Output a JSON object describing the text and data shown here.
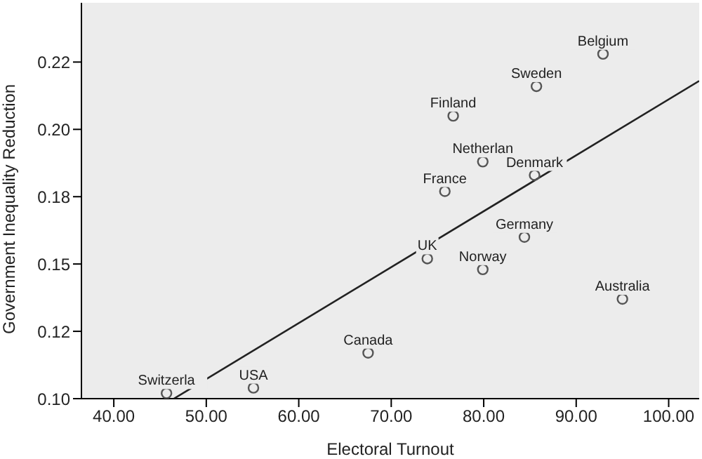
{
  "chart_data": {
    "type": "scatter",
    "xlabel": "Electoral Turnout",
    "ylabel": "Government Inequality Reduction",
    "x": [
      45.7,
      55.1,
      67.5,
      73.9,
      79.9,
      84.4,
      95.0,
      75.8,
      79.9,
      85.5,
      76.7,
      85.7,
      92.9
    ],
    "series": [
      {
        "marker": "circle",
        "color": "#555555",
        "values": [
          0.102,
          0.104,
          0.117,
          0.152,
          0.148,
          0.16,
          0.137,
          0.177,
          0.188,
          0.183,
          0.205,
          0.216,
          0.228
        ]
      },
      {
        "type": "line",
        "color": "#222222",
        "x": [
          46.5,
          103.3
        ],
        "values": [
          0.1,
          0.218
        ]
      }
    ],
    "grid": false,
    "legend": false,
    "xlim": [
      36.5,
      103.3
    ],
    "ylim": [
      0.1,
      0.247
    ],
    "xticks": [
      {
        "value": 40,
        "label": "40.00"
      },
      {
        "value": 50,
        "label": "50.00"
      },
      {
        "value": 60,
        "label": "60.00"
      },
      {
        "value": 70,
        "label": "70.00"
      },
      {
        "value": 80,
        "label": "80.00"
      },
      {
        "value": 90,
        "label": "90.00"
      },
      {
        "value": 100,
        "label": "100.00"
      }
    ],
    "yticks": [
      {
        "value": 0.1,
        "label": "0.10"
      },
      {
        "value": 0.125,
        "label": "0.12"
      },
      {
        "value": 0.15,
        "label": "0.15"
      },
      {
        "value": 0.175,
        "label": "0.18"
      },
      {
        "value": 0.2,
        "label": "0.20"
      },
      {
        "value": 0.225,
        "label": "0.22"
      }
    ],
    "annotations": [
      {
        "text": "Switzerla",
        "x": 45.7,
        "y": 0.102
      },
      {
        "text": "USA",
        "x": 55.1,
        "y": 0.104
      },
      {
        "text": "Canada",
        "x": 67.5,
        "y": 0.117
      },
      {
        "text": "UK",
        "x": 73.9,
        "y": 0.152
      },
      {
        "text": "Norway",
        "x": 79.9,
        "y": 0.148
      },
      {
        "text": "Germany",
        "x": 84.4,
        "y": 0.16
      },
      {
        "text": "Australia",
        "x": 95.0,
        "y": 0.137
      },
      {
        "text": "France",
        "x": 75.8,
        "y": 0.177
      },
      {
        "text": "Netherlan",
        "x": 79.9,
        "y": 0.188
      },
      {
        "text": "Denmark",
        "x": 85.5,
        "y": 0.183
      },
      {
        "text": "Finland",
        "x": 76.7,
        "y": 0.205
      },
      {
        "text": "Sweden",
        "x": 85.7,
        "y": 0.216
      },
      {
        "text": "Belgium",
        "x": 92.9,
        "y": 0.228
      }
    ]
  }
}
